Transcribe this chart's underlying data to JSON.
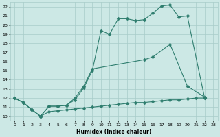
{
  "line1_x": [
    0,
    1,
    2,
    3,
    4,
    5,
    6,
    7,
    8,
    9,
    10,
    11,
    12,
    13,
    14,
    15,
    16,
    17,
    18,
    19,
    20,
    22
  ],
  "line1_y": [
    12,
    11.5,
    10.7,
    10.0,
    11.1,
    11.1,
    11.2,
    11.8,
    13.1,
    15.0,
    19.4,
    19.0,
    20.7,
    20.7,
    20.5,
    20.6,
    21.3,
    22.1,
    22.2,
    20.9,
    21.0,
    12.0
  ],
  "line2_x": [
    0,
    1,
    2,
    3,
    4,
    5,
    6,
    7,
    8,
    9,
    15,
    16,
    18,
    20,
    22
  ],
  "line2_y": [
    12,
    11.5,
    10.7,
    10.0,
    11.1,
    11.1,
    11.2,
    12.0,
    13.3,
    15.2,
    16.2,
    16.5,
    17.9,
    13.3,
    12.1
  ],
  "line3_x": [
    0,
    1,
    2,
    3,
    4,
    5,
    6,
    7,
    8,
    9,
    10,
    11,
    12,
    13,
    14,
    15,
    16,
    17,
    18,
    19,
    20,
    21,
    22
  ],
  "line3_y": [
    12.0,
    11.5,
    10.7,
    10.0,
    10.5,
    10.6,
    10.7,
    10.8,
    10.9,
    11.0,
    11.1,
    11.2,
    11.3,
    11.4,
    11.5,
    11.5,
    11.6,
    11.7,
    11.8,
    11.8,
    11.9,
    12.0,
    12.0
  ],
  "color": "#2e7d6e",
  "bg_color": "#cce8e5",
  "grid_color": "#a8ccc9",
  "xlabel": "Humidex (Indice chaleur)",
  "ylim": [
    9.5,
    22.5
  ],
  "xlim": [
    -0.5,
    23.5
  ],
  "yticks": [
    10,
    11,
    12,
    13,
    14,
    15,
    16,
    17,
    18,
    19,
    20,
    21,
    22
  ],
  "xticks": [
    0,
    1,
    2,
    3,
    4,
    5,
    6,
    7,
    8,
    9,
    10,
    11,
    12,
    13,
    14,
    15,
    16,
    17,
    18,
    19,
    20,
    21,
    22,
    23
  ]
}
